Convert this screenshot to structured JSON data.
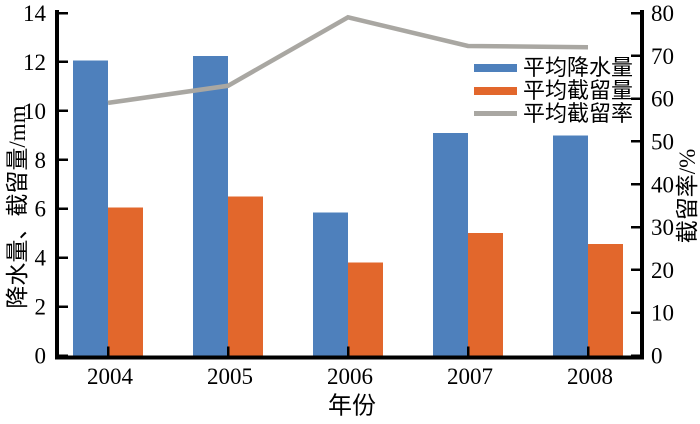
{
  "chart_data": {
    "type": "bar+line",
    "title": "",
    "xlabel": "年份",
    "ylabel_left": "降水量、截留量/mm",
    "ylabel_right": "截留率/%",
    "categories": [
      "2004",
      "2005",
      "2006",
      "2007",
      "2008"
    ],
    "series": [
      {
        "name": "平均降水量",
        "type": "bar",
        "axis": "left",
        "color": "#4E80BC",
        "values": [
          12.05,
          12.25,
          5.85,
          9.1,
          9.0
        ]
      },
      {
        "name": "平均截留量",
        "type": "bar",
        "axis": "left",
        "color": "#E2672C",
        "values": [
          6.05,
          6.5,
          3.8,
          5.0,
          4.55
        ]
      },
      {
        "name": "平均截留率",
        "type": "line",
        "axis": "right",
        "color": "#A9A7A2",
        "values": [
          59,
          63,
          79,
          72.3,
          72
        ]
      }
    ],
    "left_axis": {
      "min": 0,
      "max": 14,
      "ticks": [
        0,
        2,
        4,
        6,
        8,
        10,
        12,
        14
      ]
    },
    "right_axis": {
      "min": 0,
      "max": 80,
      "ticks": [
        0,
        10,
        20,
        30,
        40,
        50,
        60,
        70,
        80
      ]
    },
    "legend_position": "inside-upper-right",
    "grid": false,
    "axis_color": "#000000",
    "text_color": "#000000",
    "background": "#FFFFFF"
  }
}
